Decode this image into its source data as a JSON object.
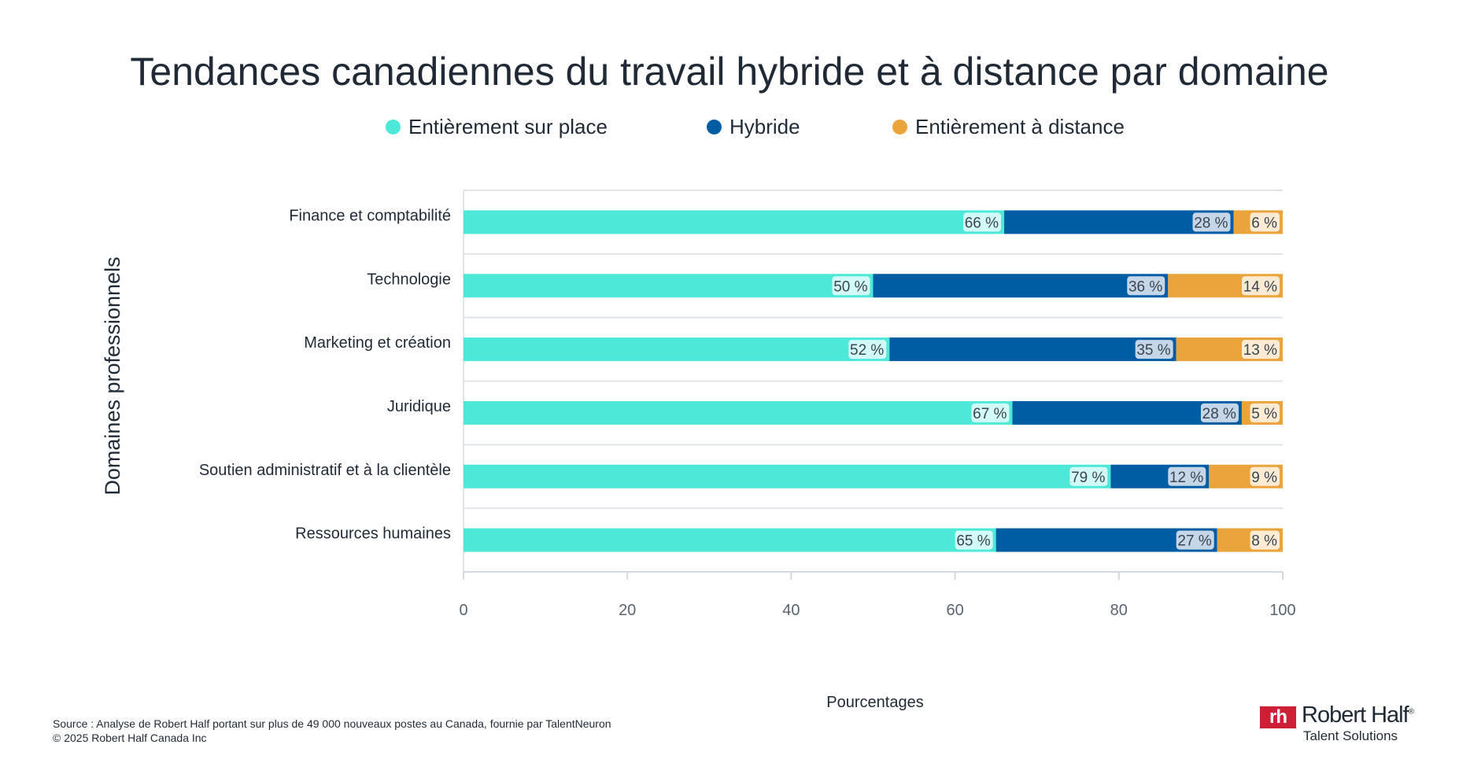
{
  "chart_data": {
    "type": "bar",
    "orientation": "horizontal",
    "stacked": true,
    "title": "Tendances canadiennes du travail hybride et à distance par domaine",
    "xlabel": "Pourcentages",
    "ylabel": "Domaines professionnels",
    "xlim": [
      0,
      100
    ],
    "xticks": [
      "0",
      "20",
      "40",
      "60",
      "80",
      "100"
    ],
    "legend_position": "top",
    "categories": [
      "Finance et comptabilité",
      "Technologie",
      "Marketing et création",
      "Juridique",
      "Soutien administratif et à la clientèle",
      "Ressources humaines"
    ],
    "series": [
      {
        "name": "Entièrement sur place",
        "color": "#4de8d8",
        "values": [
          66,
          50,
          52,
          67,
          79,
          65
        ]
      },
      {
        "name": "Hybride",
        "color": "#005da3",
        "values": [
          28,
          36,
          35,
          28,
          12,
          27
        ]
      },
      {
        "name": "Entièrement à distance",
        "color": "#eba33b",
        "values": [
          6,
          14,
          13,
          5,
          9,
          8
        ]
      }
    ],
    "data_label_suffix": " %"
  },
  "footer": {
    "source": "Source : Analyse de Robert Half portant sur plus de 49 000 nouveaux postes au Canada, fournie par TalentNeuron",
    "copyright": "© 2025 Robert Half Canada Inc"
  },
  "logo": {
    "mark": "rh",
    "name": "Robert Half",
    "registered": "®",
    "tagline": "Talent Solutions",
    "color": "#ce1f36"
  }
}
